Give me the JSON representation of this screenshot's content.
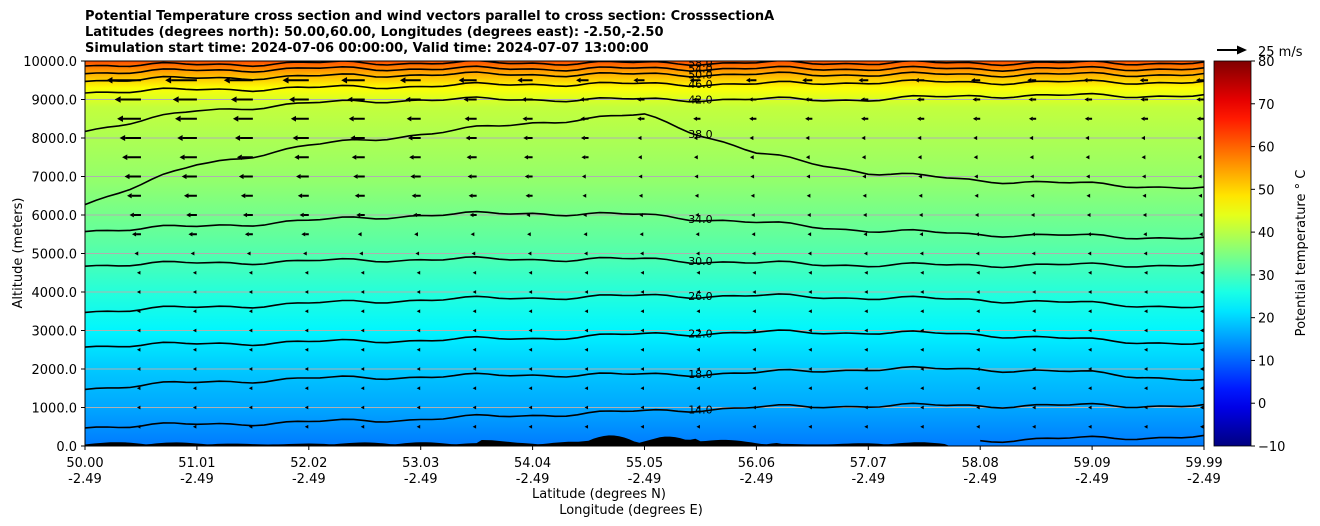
{
  "title": {
    "line1": "Potential Temperature cross section and wind vectors parallel to cross section: CrosssectionA",
    "line2": "Latitudes (degrees north): 50.00,60.00, Longitudes (degrees east): -2.50,-2.50",
    "line3": "Simulation start time: 2024-07-06 00:00:00, Valid time: 2024-07-07 13:00:00"
  },
  "chart_data": {
    "type": "heatmap",
    "xlabel": "Latitude (degrees N)",
    "xlabel2": "Longitude (degrees E)",
    "ylabel": "Altitude (meters)",
    "ylim": [
      0,
      10000
    ],
    "xlim": [
      50.0,
      59.99
    ],
    "grid": "horizontal",
    "x_ticks": [
      {
        "lat": "50.00",
        "lon": "-2.49"
      },
      {
        "lat": "51.01",
        "lon": "-2.49"
      },
      {
        "lat": "52.02",
        "lon": "-2.49"
      },
      {
        "lat": "53.03",
        "lon": "-2.49"
      },
      {
        "lat": "54.04",
        "lon": "-2.49"
      },
      {
        "lat": "55.05",
        "lon": "-2.49"
      },
      {
        "lat": "56.06",
        "lon": "-2.49"
      },
      {
        "lat": "57.07",
        "lon": "-2.49"
      },
      {
        "lat": "58.08",
        "lon": "-2.49"
      },
      {
        "lat": "59.09",
        "lon": "-2.49"
      },
      {
        "lat": "59.99",
        "lon": "-2.49"
      }
    ],
    "y_ticks": [
      "0.0",
      "1000.0",
      "2000.0",
      "3000.0",
      "4000.0",
      "5000.0",
      "6000.0",
      "7000.0",
      "8000.0",
      "9000.0",
      "10000.0"
    ],
    "colorbar": {
      "label": "Potential temperature ° C",
      "range": [
        -10,
        80
      ],
      "ticks": [
        "−10",
        "0",
        "10",
        "20",
        "30",
        "40",
        "50",
        "60",
        "70",
        "80"
      ],
      "colormap": "jet"
    },
    "contours": [
      {
        "level": "10.0",
        "heights": [
          null,
          null,
          null,
          null,
          null,
          null,
          null,
          null,
          150,
          200,
          250
        ]
      },
      {
        "level": "14.0",
        "heights": [
          500,
          560,
          620,
          700,
          800,
          900,
          1000,
          1050,
          1050,
          1050,
          1050
        ]
      },
      {
        "level": "18.0",
        "heights": [
          1500,
          1650,
          1750,
          1800,
          1850,
          1850,
          1900,
          2000,
          2000,
          1900,
          1700
        ]
      },
      {
        "level": "22.0",
        "heights": [
          2600,
          2650,
          2700,
          2750,
          2800,
          2900,
          2950,
          2950,
          2900,
          2750,
          2650
        ]
      },
      {
        "level": "26.0",
        "heights": [
          3500,
          3600,
          3700,
          3800,
          3850,
          3900,
          3900,
          3850,
          3800,
          3700,
          3600
        ]
      },
      {
        "level": "30.0",
        "heights": [
          4700,
          4750,
          4800,
          4850,
          4850,
          4850,
          4750,
          4700,
          4700,
          4700,
          4700
        ]
      },
      {
        "level": "34.0",
        "heights": [
          5600,
          5700,
          5850,
          6000,
          6050,
          6000,
          5800,
          5600,
          5500,
          5450,
          5400
        ]
      },
      {
        "level": "38.0",
        "heights": [
          6300,
          7300,
          7800,
          8100,
          8400,
          8600,
          7600,
          7100,
          6900,
          6800,
          6700
        ]
      },
      {
        "level": "42.0",
        "heights": [
          8200,
          8700,
          8900,
          9000,
          9000,
          9000,
          9000,
          9000,
          9100,
          9100,
          9100
        ]
      },
      {
        "level": "46.0",
        "heights": [
          9200,
          9250,
          9300,
          9350,
          9400,
          9400,
          9400,
          9450,
          9450,
          9450,
          9450
        ]
      },
      {
        "level": "50.0",
        "heights": [
          9500,
          9550,
          9600,
          9650,
          9650,
          9650,
          9650,
          9650,
          9650,
          9650,
          9650
        ]
      },
      {
        "level": "54.0",
        "heights": [
          9700,
          9750,
          9800,
          9800,
          9800,
          9800,
          9800,
          9800,
          9800,
          9800,
          9800
        ]
      },
      {
        "level": "58.0",
        "heights": [
          9900,
          9900,
          9950,
          9950,
          9950,
          9950,
          9950,
          9950,
          9950,
          9950,
          9950
        ]
      }
    ],
    "wind_key": {
      "label": "25 m/s",
      "speed": 25
    }
  }
}
